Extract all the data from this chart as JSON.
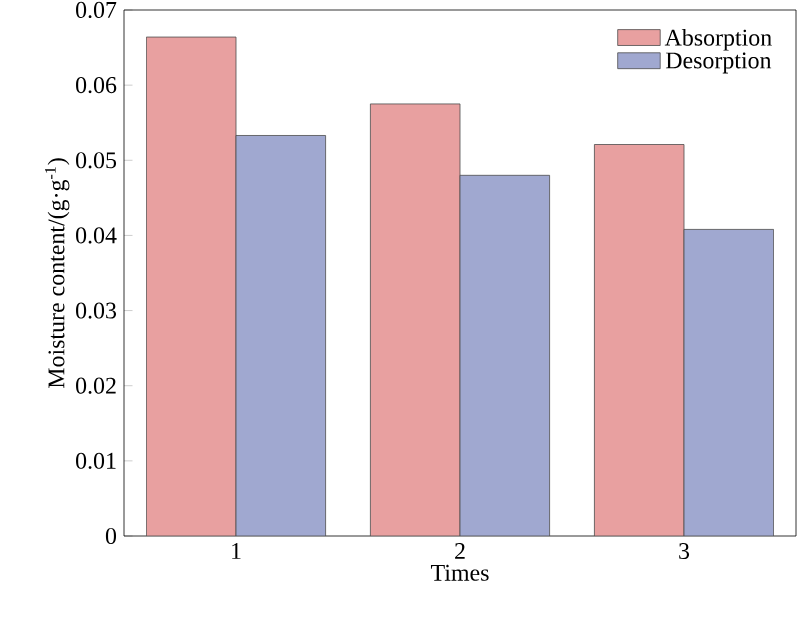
{
  "chart_data": {
    "type": "bar",
    "xlabel": "Times",
    "ylabel": "Moisture content/(g·g$^{-1}$)",
    "categories": [
      "1",
      "2",
      "3"
    ],
    "series": [
      {
        "name": "Absorption",
        "color": "#e8a0a0",
        "values": [
          0.0664,
          0.0575,
          0.0521
        ]
      },
      {
        "name": "Desorption",
        "color": "#a0a8d0",
        "values": [
          0.0533,
          0.048,
          0.0408
        ]
      }
    ],
    "ylim": [
      0,
      0.07
    ],
    "yticks": [
      0,
      0.01,
      0.02,
      0.03,
      0.04,
      0.05,
      0.06,
      0.07
    ],
    "legend": "top right"
  }
}
